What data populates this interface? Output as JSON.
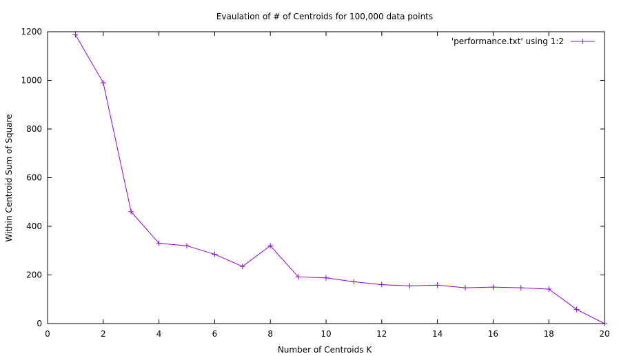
{
  "chart_data": {
    "type": "line",
    "title": "Evaulation of # of Centroids for 100,000 data points",
    "xlabel": "Number of Centroids K",
    "ylabel": "Within Centroid Sum of Square",
    "xlim": [
      0,
      20
    ],
    "ylim": [
      0,
      1200
    ],
    "xticks": [
      0,
      2,
      4,
      6,
      8,
      10,
      12,
      14,
      16,
      18,
      20
    ],
    "yticks": [
      0,
      200,
      400,
      600,
      800,
      1000,
      1200
    ],
    "grid": false,
    "legend_position": "top-right",
    "series": [
      {
        "name": "'performance.txt' using 1:2",
        "color": "#9400d3",
        "marker": "plus",
        "x": [
          1,
          2,
          3,
          4,
          5,
          6,
          7,
          8,
          9,
          10,
          11,
          12,
          13,
          14,
          15,
          16,
          17,
          18,
          19,
          20
        ],
        "y": [
          1188,
          990,
          460,
          330,
          320,
          285,
          235,
          320,
          192,
          188,
          172,
          160,
          155,
          158,
          147,
          150,
          147,
          142,
          58,
          0
        ]
      }
    ]
  }
}
